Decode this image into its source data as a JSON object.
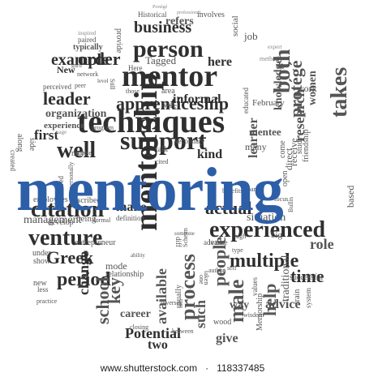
{
  "cloud": {
    "center_word": "mentoring",
    "accent_color": "#2d5fa8",
    "dark": "#2f2f2f",
    "mid": "#555555",
    "light": "#8a8a8a",
    "words": [
      "Historical",
      "professional",
      "involves",
      "Protégé",
      "business",
      "provide",
      "refers",
      "person",
      "inspired",
      "paired",
      "typically",
      "social",
      "job",
      "example",
      "order",
      "mentor",
      "guru",
      "New",
      "network",
      "Here",
      "Tagged",
      "here",
      "expert",
      "method",
      "both",
      "work",
      "knowledge",
      "perceived",
      "peer",
      "level",
      "Still",
      "those",
      "area",
      "informal",
      "white",
      "educated",
      "protégé",
      "leader",
      "apprenticeship",
      "coach",
      "February",
      "organization",
      "techniques",
      "research",
      "women",
      "experience",
      "first",
      "program",
      "support",
      "mentee",
      "well",
      "takes",
      "direct",
      "study",
      "many",
      "come",
      "receive",
      "friendship",
      "page",
      "more",
      "article",
      "citation",
      "talk",
      "kind",
      "learner",
      "open",
      "employees",
      "described",
      "make",
      "actual",
      "part",
      "focus",
      "situation",
      "management",
      "develop",
      "formal",
      "venture",
      "experienced",
      "high",
      "big",
      "along",
      "side",
      "created",
      "being",
      "entrepreneur",
      "Greek",
      "learn",
      "type",
      "multiple",
      "under",
      "show",
      "period",
      "new",
      "less",
      "practice",
      "change",
      "key",
      "mode",
      "relationship",
      "mentorship",
      "process",
      "people",
      "male",
      "help",
      "role",
      "based",
      "time",
      "traditional",
      "successful",
      "school",
      "available",
      "usually",
      "one",
      "values",
      "system",
      "train",
      "career",
      "Potential",
      "two",
      "such",
      "way",
      "Mentorship",
      "advice",
      "give",
      "wood",
      "wisdom",
      "between",
      "ten",
      "reverses",
      "closing",
      "author",
      "taken",
      "self",
      "Scheim",
      "someone",
      "structured",
      "personally",
      "benefits",
      "Bullis",
      "definition",
      "ability",
      "diff",
      "advance",
      "secondary",
      "cited"
    ]
  },
  "footer": {
    "site": "www.shutterstock.com",
    "separator": "·",
    "image_id": "118337485"
  }
}
